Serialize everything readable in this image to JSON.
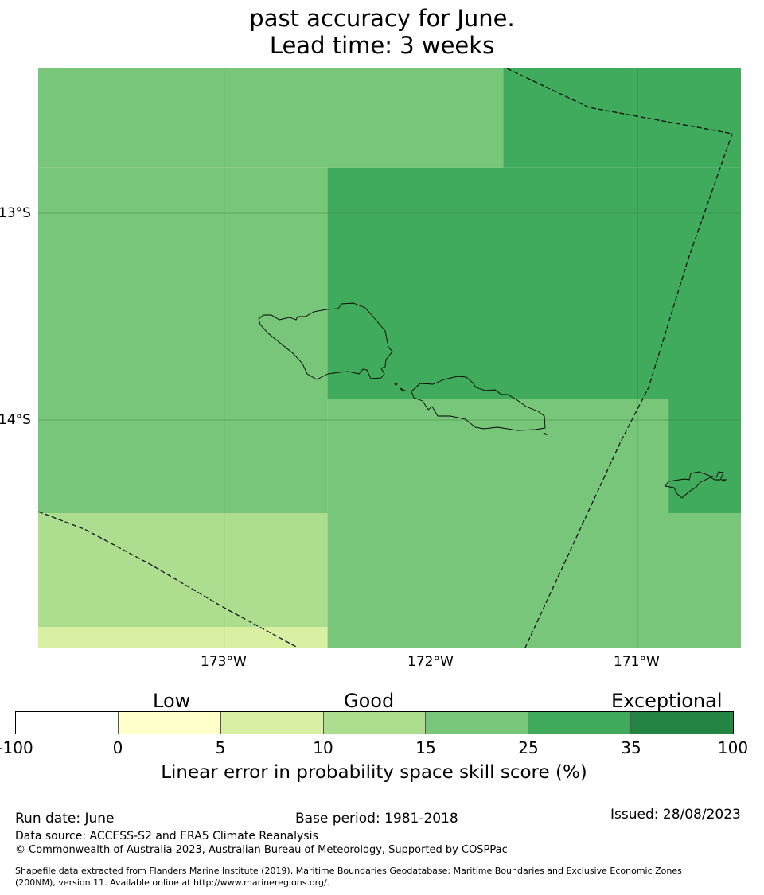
{
  "title": {
    "line1": "past accuracy for June.",
    "line2": "Lead time: 3 weeks"
  },
  "map": {
    "lon_ticks": [
      "173°W",
      "172°W",
      "171°W"
    ],
    "lat_ticks": [
      "13°S",
      "14°S"
    ],
    "lon_range": [
      -173.9,
      -170.5
    ],
    "lat_range": [
      -15.1,
      -12.3
    ],
    "grid_cells": [
      {
        "lon": [
          -173.9,
          -171.65
        ],
        "lat": [
          -12.78,
          -12.3
        ],
        "score_category": "15-25"
      },
      {
        "lon": [
          -171.65,
          -170.5
        ],
        "lat": [
          -12.78,
          -12.3
        ],
        "score_category": "25-35"
      },
      {
        "lon": [
          -173.9,
          -172.5
        ],
        "lat": [
          -13.9,
          -12.78
        ],
        "score_category": "15-25"
      },
      {
        "lon": [
          -172.5,
          -170.5
        ],
        "lat": [
          -13.9,
          -12.78
        ],
        "score_category": "25-35"
      },
      {
        "lon": [
          -173.9,
          -172.5
        ],
        "lat": [
          -14.45,
          -13.9
        ],
        "score_category": "15-25"
      },
      {
        "lon": [
          -172.5,
          -170.85
        ],
        "lat": [
          -14.45,
          -13.9
        ],
        "score_category": "15-25"
      },
      {
        "lon": [
          -170.85,
          -170.5
        ],
        "lat": [
          -14.45,
          -13.9
        ],
        "score_category": "25-35"
      },
      {
        "lon": [
          -173.9,
          -172.5
        ],
        "lat": [
          -15.0,
          -14.45
        ],
        "score_category": "10-15"
      },
      {
        "lon": [
          -173.9,
          -172.5
        ],
        "lat": [
          -15.1,
          -15.0
        ],
        "score_category": "5-10"
      },
      {
        "lon": [
          -172.5,
          -170.5
        ],
        "lat": [
          -15.1,
          -14.45
        ],
        "score_category": "15-25"
      }
    ]
  },
  "legend": {
    "words": [
      "Low",
      "Good",
      "Exceptional"
    ],
    "ticks": [
      "-100",
      "0",
      "5",
      "10",
      "15",
      "25",
      "35",
      "100"
    ],
    "colors": [
      "#ffffff",
      "#ffffcc",
      "#d9f0a3",
      "#addd8e",
      "#78c679",
      "#41ab5d",
      "#238443"
    ],
    "label": "Linear error in probability space skill score (%)"
  },
  "footer": {
    "run_date": "Run date: June",
    "base_period": "Base period: 1981-2018",
    "issued": "Issued: 28/08/2023",
    "data_source": "Data source: ACCESS-S2 and ERA5 Climate Reanalysis",
    "copyright": "© Commonwealth of Australia 2023, Australian Bureau of Meteorology, Supported by COSPPac",
    "shapefile_line1": "Shapefile data extracted from Flanders Marine Institute (2019), Maritime Boundaries Geodatabase: Maritime Boundaries and Exclusive Economic Zones",
    "shapefile_line2": "(200NM), version 11. Available online at http://www.marineregions.org/."
  }
}
